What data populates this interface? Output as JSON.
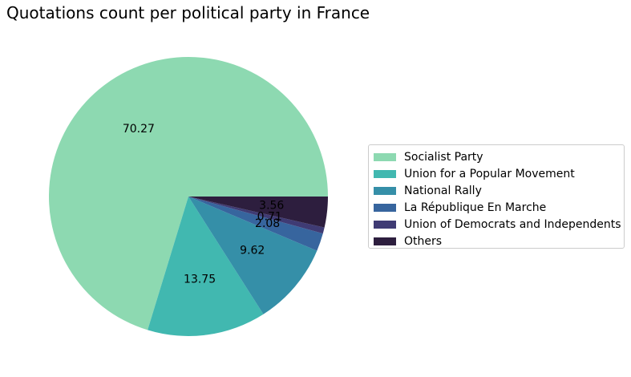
{
  "chart_data": {
    "type": "pie",
    "title": "Quotations count per political party in France",
    "categories": [
      "Socialist Party",
      "Union for a Popular Movement",
      "National Rally",
      "La République En Marche",
      "Union of Democrats and Independents",
      "Others"
    ],
    "values": [
      70.27,
      13.75,
      9.62,
      2.08,
      0.71,
      3.56
    ],
    "labels": [
      "70.27",
      "13.75",
      "9.62",
      "2.08",
      "0.71",
      "3.56"
    ],
    "colors": [
      "#8dd9b1",
      "#41b8b0",
      "#358fa8",
      "#37659e",
      "#3f3b74",
      "#2d1e3e"
    ],
    "legend_position": "right"
  }
}
